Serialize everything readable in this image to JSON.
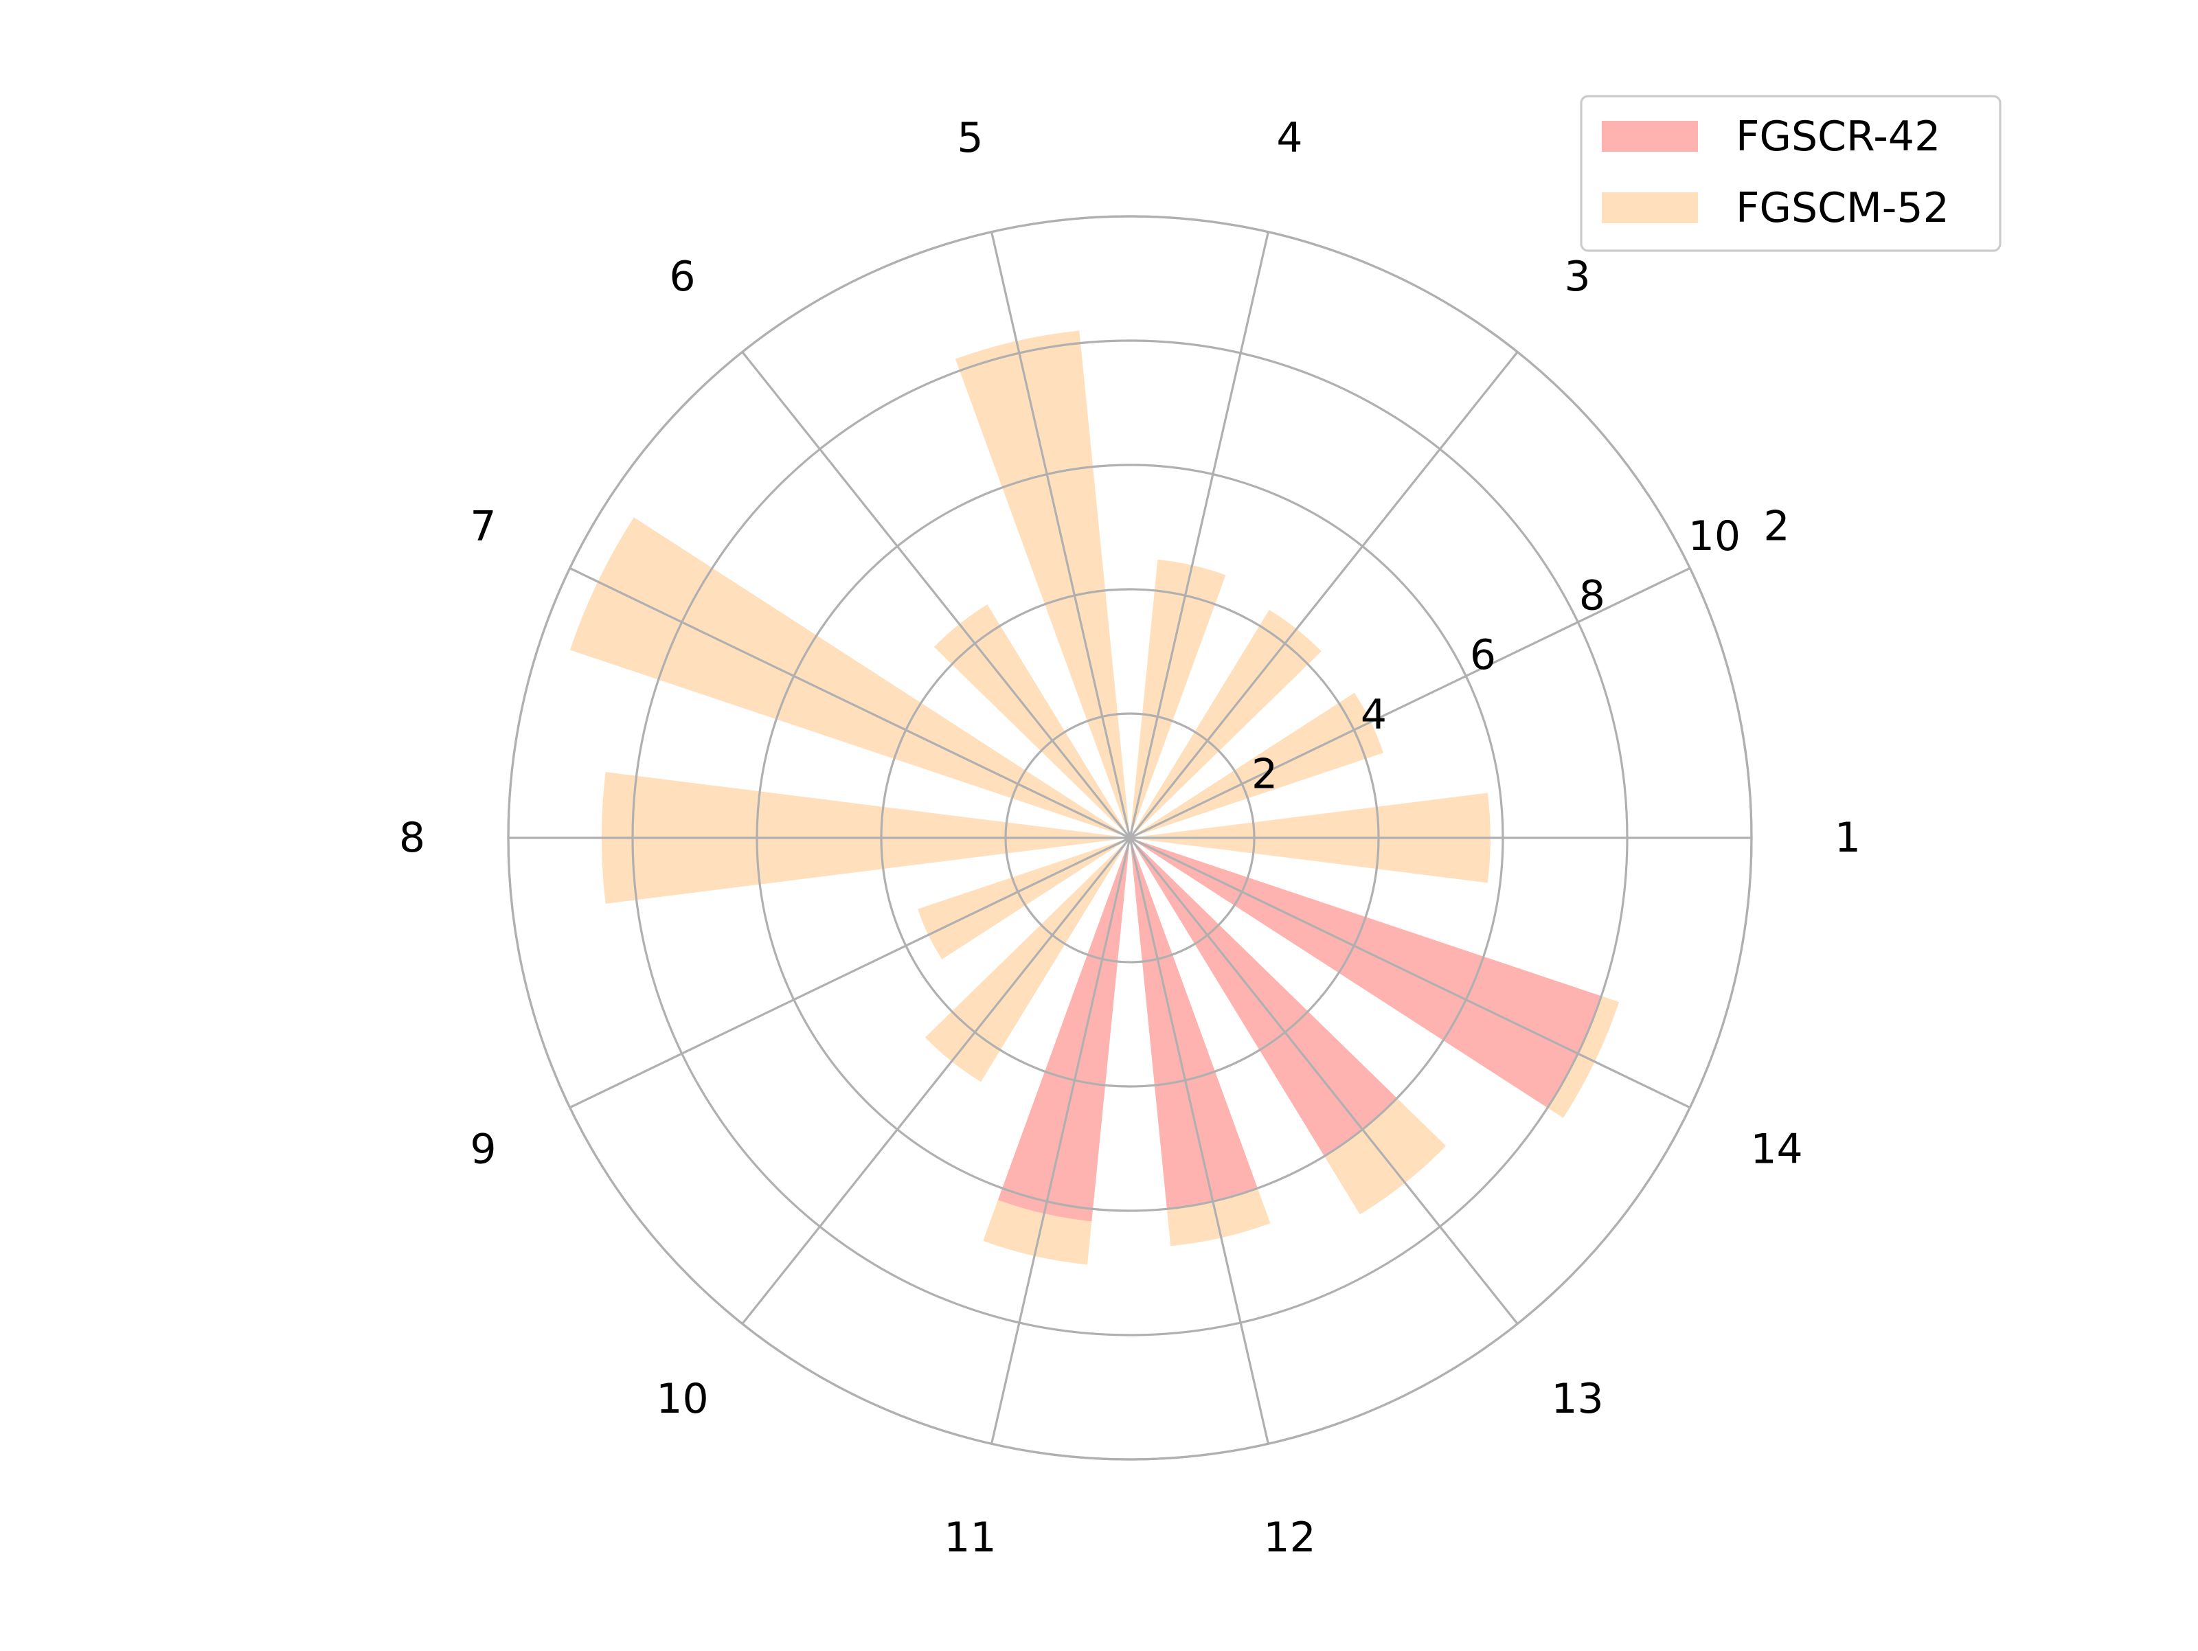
{
  "chart_data": {
    "type": "bar",
    "subtype": "polar",
    "title": "",
    "categories": [
      "1",
      "2",
      "3",
      "4",
      "5",
      "6",
      "7",
      "8",
      "9",
      "10",
      "11",
      "12",
      "13",
      "14"
    ],
    "series": [
      {
        "name": "FGSCR-42",
        "color": "#ffb3b0",
        "values": [
          0,
          0,
          0,
          0,
          0,
          0,
          0,
          0,
          0,
          0,
          6.2,
          6.0,
          6.0,
          8.0
        ]
      },
      {
        "name": "FGSCM-52",
        "color": "#ffdfbc",
        "values": [
          5.8,
          4.3,
          4.3,
          4.5,
          8.2,
          4.4,
          9.5,
          8.5,
          3.6,
          4.6,
          6.9,
          6.6,
          7.1,
          8.3
        ]
      }
    ],
    "radial_axis": {
      "ticks": [
        2,
        4,
        6,
        8,
        10
      ],
      "tick_labels": [
        "2",
        "4",
        "6",
        "8",
        "10"
      ],
      "range": [
        0,
        10
      ],
      "label_angle_category": "2"
    },
    "grid": true,
    "legend": {
      "position": "top-right"
    }
  }
}
